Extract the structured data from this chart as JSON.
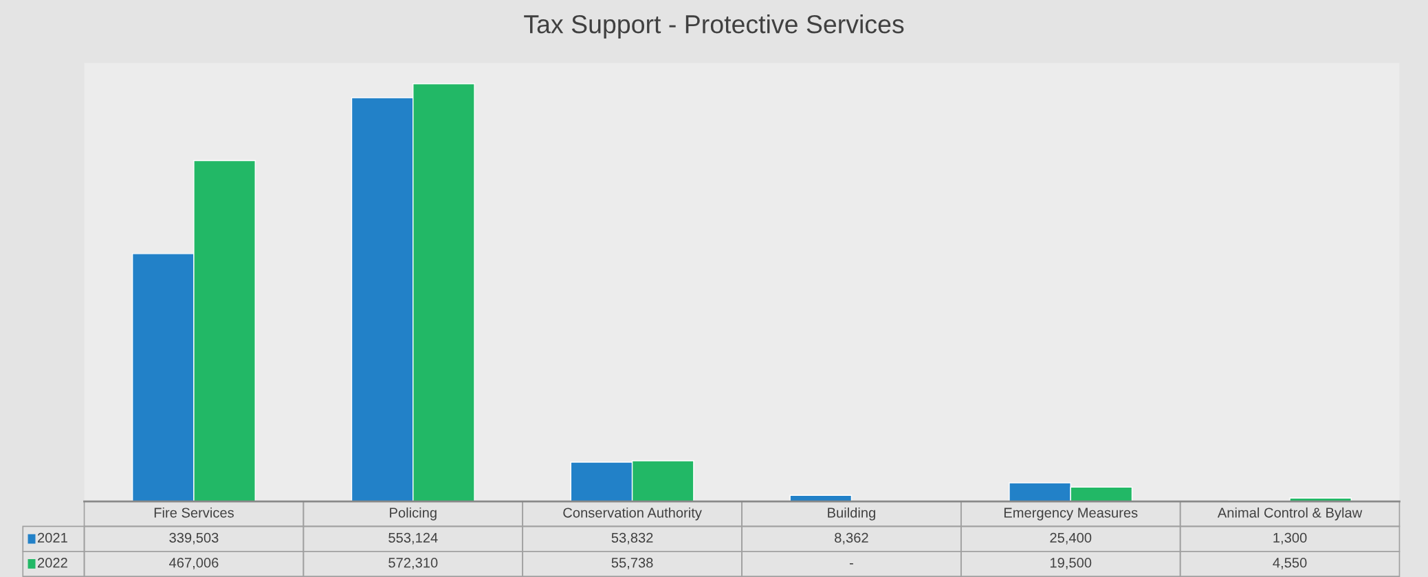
{
  "chart_data": {
    "type": "bar",
    "title": "Tax Support - Protective Services",
    "categories": [
      "Fire Services",
      "Policing",
      "Conservation Authority",
      "Building",
      "Emergency Measures",
      "Animal Control & Bylaw"
    ],
    "series": [
      {
        "name": "2021",
        "color": "#2281c8",
        "values": [
          339503,
          553124,
          53832,
          8362,
          25400,
          1300
        ],
        "value_labels": [
          "339,503",
          "553,124",
          "53,832",
          "8,362",
          "25,400",
          "1,300"
        ]
      },
      {
        "name": "2022",
        "color": "#22b866",
        "values": [
          467006,
          572310,
          55738,
          null,
          19500,
          4550
        ],
        "value_labels": [
          "467,006",
          "572,310",
          "55,738",
          "-",
          "19,500",
          "4,550"
        ]
      }
    ],
    "data_labels": true,
    "legend": "bottom"
  }
}
